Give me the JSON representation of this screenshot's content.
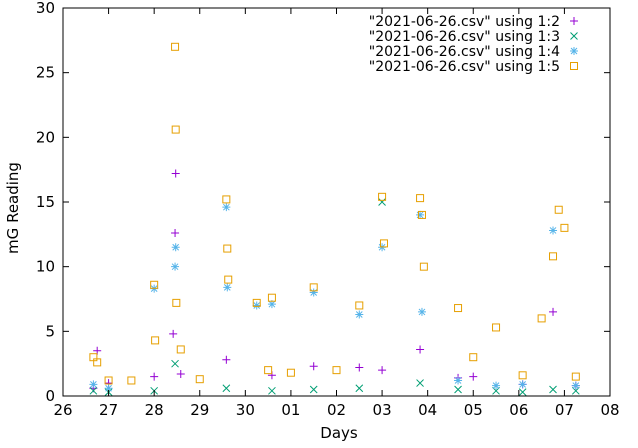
{
  "chart_data": {
    "type": "scatter",
    "title": "",
    "xlabel": "Days",
    "ylabel": "mG Reading",
    "x_ticks": [
      "26",
      "27",
      "28",
      "29",
      "30",
      "01",
      "02",
      "03",
      "04",
      "05",
      "06",
      "07",
      "08"
    ],
    "x_tick_dates": [
      "2021-06-26",
      "2021-06-27",
      "2021-06-28",
      "2021-06-29",
      "2021-06-30",
      "2021-07-01",
      "2021-07-02",
      "2021-07-03",
      "2021-07-04",
      "2021-07-05",
      "2021-07-06",
      "2021-07-07",
      "2021-07-08"
    ],
    "x_range": [
      "2021-06-26",
      "2021-07-08"
    ],
    "ylim": [
      0,
      30
    ],
    "y_ticks": [
      0,
      5,
      10,
      15,
      20,
      25,
      30
    ],
    "grid": false,
    "legend_position": "top-right",
    "series": [
      {
        "name": "\"2021-06-26.csv\" using 1:2",
        "marker": "plus",
        "color": "#9400d3",
        "points": [
          [
            "2021-06-26 16:00",
            0.6
          ],
          [
            "2021-06-26 18:00",
            3.5
          ],
          [
            "2021-06-27 00:00",
            1.0
          ],
          [
            "2021-06-28 00:00",
            1.5
          ],
          [
            "2021-06-28 10:00",
            4.8
          ],
          [
            "2021-06-28 11:00",
            12.6
          ],
          [
            "2021-06-28 11:20",
            17.2
          ],
          [
            "2021-06-28 14:00",
            1.7
          ],
          [
            "2021-06-29 14:00",
            2.8
          ],
          [
            "2021-06-30 14:00",
            1.6
          ],
          [
            "2021-07-01 12:00",
            2.3
          ],
          [
            "2021-07-02 12:00",
            2.2
          ],
          [
            "2021-07-03 00:00",
            2.0
          ],
          [
            "2021-07-03 20:00",
            3.6
          ],
          [
            "2021-07-04 16:00",
            1.4
          ],
          [
            "2021-07-05 00:00",
            1.5
          ],
          [
            "2021-07-06 02:00",
            0.9
          ],
          [
            "2021-07-06 18:00",
            6.5
          ],
          [
            "2021-07-07 06:00",
            0.8
          ]
        ]
      },
      {
        "name": "\"2021-06-26.csv\" using 1:3",
        "marker": "cross",
        "color": "#009e73",
        "points": [
          [
            "2021-06-26 16:00",
            0.4
          ],
          [
            "2021-06-27 00:00",
            0.3
          ],
          [
            "2021-06-28 00:00",
            0.4
          ],
          [
            "2021-06-28 11:00",
            2.5
          ],
          [
            "2021-06-29 14:00",
            0.6
          ],
          [
            "2021-06-30 14:00",
            0.4
          ],
          [
            "2021-07-01 12:00",
            0.5
          ],
          [
            "2021-07-02 12:00",
            0.6
          ],
          [
            "2021-07-03 00:00",
            15.0
          ],
          [
            "2021-07-03 20:00",
            1.0
          ],
          [
            "2021-07-04 16:00",
            0.5
          ],
          [
            "2021-07-05 12:00",
            0.4
          ],
          [
            "2021-07-06 02:00",
            0.3
          ],
          [
            "2021-07-06 18:00",
            0.5
          ],
          [
            "2021-07-07 06:00",
            0.4
          ]
        ]
      },
      {
        "name": "\"2021-06-26.csv\" using 1:4",
        "marker": "star",
        "color": "#56b4e9",
        "points": [
          [
            "2021-06-26 16:00",
            0.9
          ],
          [
            "2021-06-27 00:00",
            0.6
          ],
          [
            "2021-06-28 00:00",
            8.3
          ],
          [
            "2021-06-28 11:00",
            10.0
          ],
          [
            "2021-06-28 11:20",
            11.5
          ],
          [
            "2021-06-29 14:00",
            14.6
          ],
          [
            "2021-06-29 14:30",
            8.4
          ],
          [
            "2021-06-30 06:00",
            7.0
          ],
          [
            "2021-06-30 14:00",
            7.1
          ],
          [
            "2021-07-01 12:00",
            8.0
          ],
          [
            "2021-07-02 12:00",
            6.3
          ],
          [
            "2021-07-03 00:00",
            11.5
          ],
          [
            "2021-07-03 20:00",
            14.0
          ],
          [
            "2021-07-03 21:00",
            6.5
          ],
          [
            "2021-07-04 16:00",
            1.2
          ],
          [
            "2021-07-05 12:00",
            0.8
          ],
          [
            "2021-07-06 02:00",
            0.9
          ],
          [
            "2021-07-06 18:00",
            12.8
          ],
          [
            "2021-07-07 06:00",
            0.8
          ]
        ]
      },
      {
        "name": "\"2021-06-26.csv\" using 1:5",
        "marker": "open-square",
        "color": "#e69f00",
        "points": [
          [
            "2021-06-26 16:00",
            3.0
          ],
          [
            "2021-06-26 18:00",
            2.6
          ],
          [
            "2021-06-27 00:00",
            1.2
          ],
          [
            "2021-06-27 12:00",
            1.2
          ],
          [
            "2021-06-28 00:00",
            8.6
          ],
          [
            "2021-06-28 00:30",
            4.3
          ],
          [
            "2021-06-28 11:00",
            27.0
          ],
          [
            "2021-06-28 11:20",
            20.6
          ],
          [
            "2021-06-28 11:40",
            7.2
          ],
          [
            "2021-06-28 14:00",
            3.6
          ],
          [
            "2021-06-29 00:00",
            1.3
          ],
          [
            "2021-06-29 14:00",
            15.2
          ],
          [
            "2021-06-29 14:30",
            11.4
          ],
          [
            "2021-06-29 15:00",
            9.0
          ],
          [
            "2021-06-30 06:00",
            7.2
          ],
          [
            "2021-06-30 12:00",
            2.0
          ],
          [
            "2021-06-30 14:00",
            7.6
          ],
          [
            "2021-07-01 00:00",
            1.8
          ],
          [
            "2021-07-01 12:00",
            8.4
          ],
          [
            "2021-07-02 00:00",
            2.0
          ],
          [
            "2021-07-02 12:00",
            7.0
          ],
          [
            "2021-07-03 00:00",
            15.4
          ],
          [
            "2021-07-03 01:00",
            11.8
          ],
          [
            "2021-07-03 20:00",
            15.3
          ],
          [
            "2021-07-03 21:00",
            14.0
          ],
          [
            "2021-07-03 22:00",
            10.0
          ],
          [
            "2021-07-04 16:00",
            6.8
          ],
          [
            "2021-07-05 00:00",
            3.0
          ],
          [
            "2021-07-05 12:00",
            5.3
          ],
          [
            "2021-07-06 02:00",
            1.6
          ],
          [
            "2021-07-06 12:00",
            6.0
          ],
          [
            "2021-07-06 18:00",
            10.8
          ],
          [
            "2021-07-06 21:00",
            14.4
          ],
          [
            "2021-07-07 00:00",
            13.0
          ],
          [
            "2021-07-07 06:00",
            1.5
          ]
        ]
      }
    ]
  }
}
